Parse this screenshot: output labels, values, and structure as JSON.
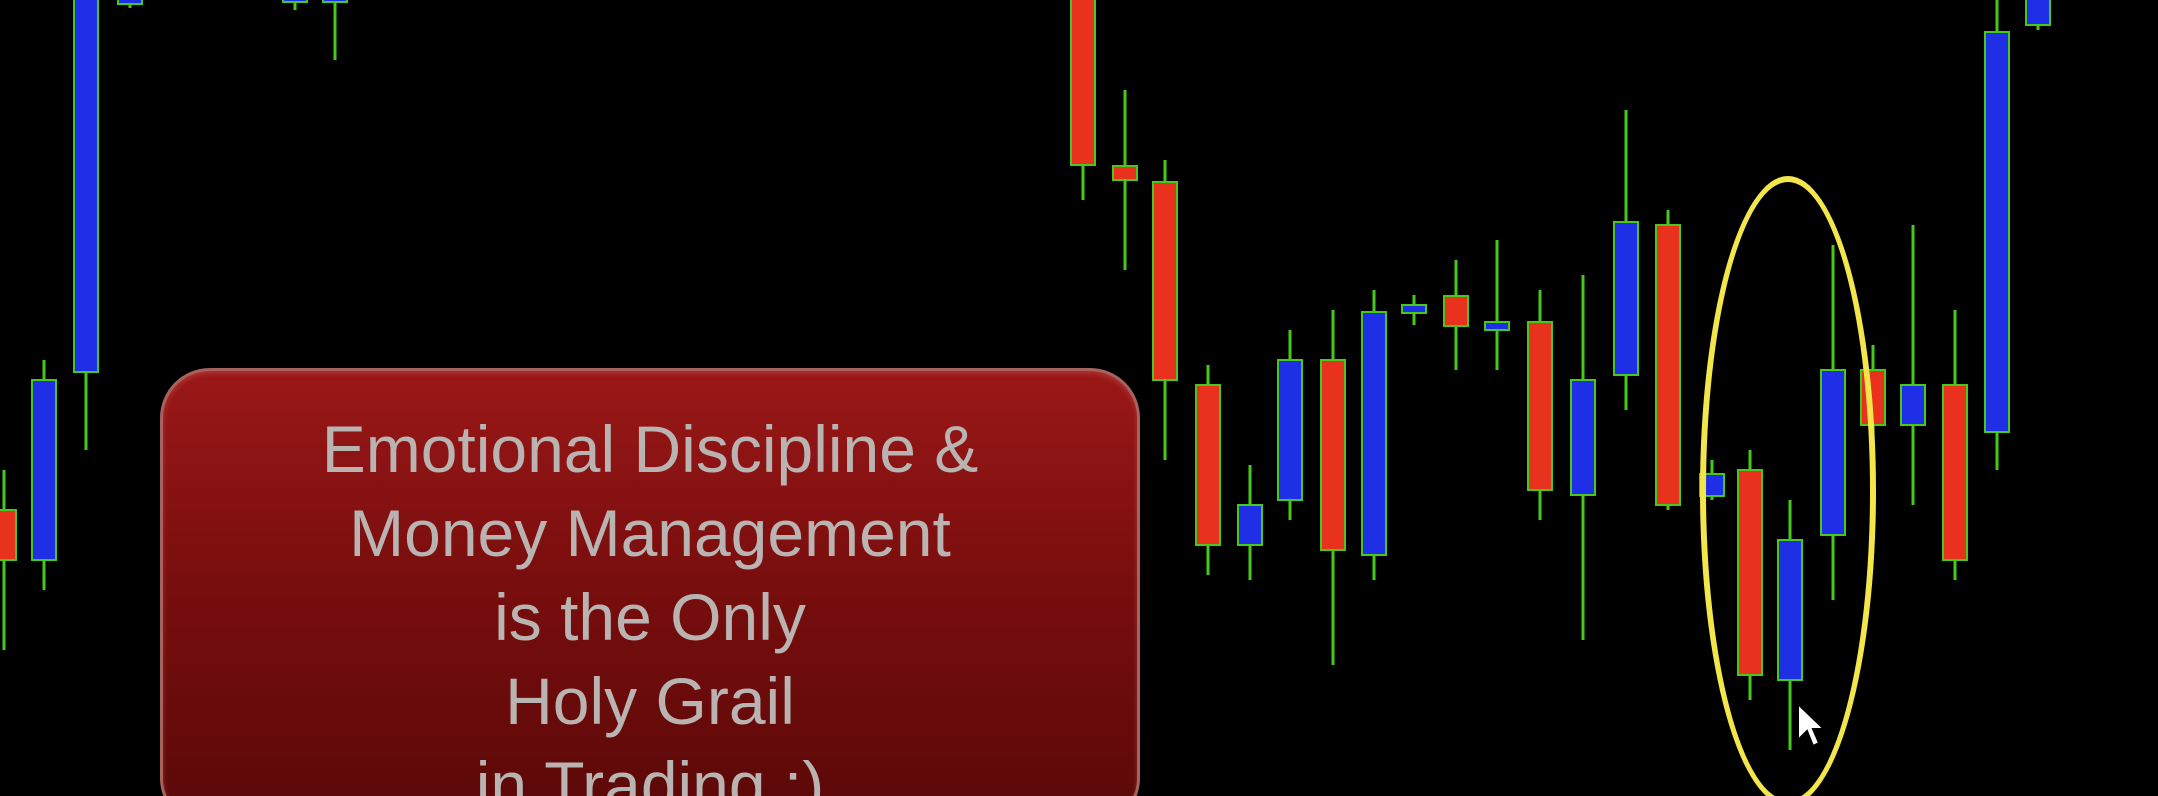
{
  "callout": {
    "lines": [
      "Emotional Discipline &",
      "Money Management",
      "is the Only",
      "Holy Grail",
      "in Trading :)"
    ]
  },
  "colors": {
    "background": "#000000",
    "bull_candle": "#1f2fe6",
    "bear_candle": "#e8321e",
    "wick": "#46c81c",
    "highlight": "#f2e64a",
    "callout_fill": "#8c1414",
    "callout_text": "#b9b3b1"
  },
  "icons": {
    "cursor": "mouse-pointer-icon"
  }
}
